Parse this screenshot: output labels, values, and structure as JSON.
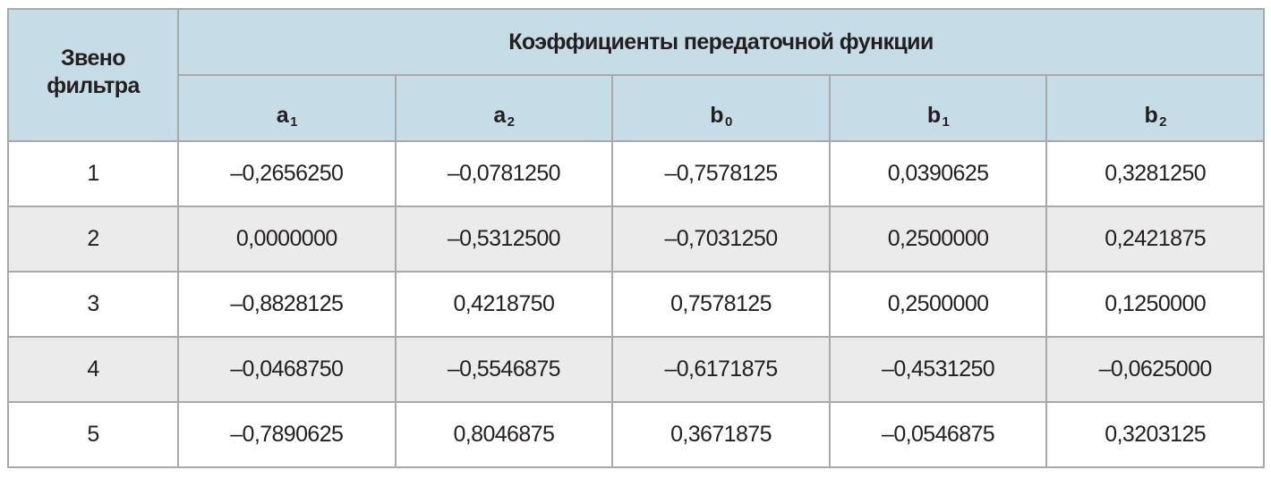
{
  "table": {
    "corner_label_line1": "Звено",
    "corner_label_line2": "фильтра",
    "group_header": "Коэффициенты передаточной функции",
    "columns": [
      {
        "base": "a",
        "sub": "1"
      },
      {
        "base": "a",
        "sub": "2"
      },
      {
        "base": "b",
        "sub": "0"
      },
      {
        "base": "b",
        "sub": "1"
      },
      {
        "base": "b",
        "sub": "2"
      }
    ],
    "rows": [
      {
        "stage": "1",
        "values": [
          "–0,2656250",
          "–0,0781250",
          "–0,7578125",
          "0,0390625",
          "0,3281250"
        ]
      },
      {
        "stage": "2",
        "values": [
          "0,0000000",
          "–0,5312500",
          "–0,7031250",
          "0,2500000",
          "0,2421875"
        ]
      },
      {
        "stage": "3",
        "values": [
          "–0,8828125",
          "0,4218750",
          "0,7578125",
          "0,2500000",
          "0,1250000"
        ]
      },
      {
        "stage": "4",
        "values": [
          "–0,0468750",
          "–0,5546875",
          "–0,6171875",
          "–0,4531250",
          "–0,0625000"
        ]
      },
      {
        "stage": "5",
        "values": [
          "–0,7890625",
          "0,8046875",
          "0,3671875",
          "–0,0546875",
          "0,3203125"
        ]
      }
    ],
    "colors": {
      "header_bg": "#c6dde8",
      "alt_row_bg": "#ebebeb",
      "border": "#a9a9a9",
      "text": "#231f20"
    }
  }
}
